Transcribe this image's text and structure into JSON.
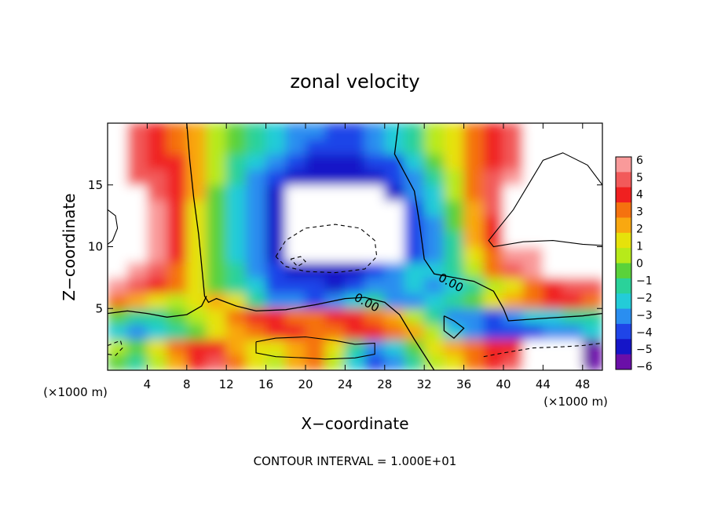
{
  "chart_data": {
    "type": "heatmap",
    "title": "zonal velocity",
    "xlabel": "X−coordinate",
    "ylabel": "Z−coordinate",
    "x_unit_left": "(×1000 m)",
    "x_unit_right": "(×1000 m)",
    "footer": "CONTOUR INTERVAL = 1.000E+01",
    "xlim": [
      0,
      50
    ],
    "ylim": [
      0,
      20
    ],
    "xticks": [
      4,
      8,
      12,
      16,
      20,
      24,
      28,
      32,
      36,
      40,
      44,
      48
    ],
    "yticks": [
      5,
      10,
      15
    ],
    "colorbar": {
      "min": -6,
      "max": 6,
      "labels": [
        "6",
        "5",
        "4",
        "3",
        "2",
        "1",
        "0",
        "−1",
        "−2",
        "−3",
        "−4",
        "−5",
        "−6"
      ],
      "colors": [
        "#f99a9a",
        "#f25a5a",
        "#f02020",
        "#f5720f",
        "#f9a810",
        "#e6e20b",
        "#b7ea1a",
        "#5ad23a",
        "#2ad29a",
        "#23ccd8",
        "#2a8ef0",
        "#1f45e8",
        "#1515c8",
        "#6a0fa8"
      ]
    },
    "contour_labels": [
      {
        "text": "0.00",
        "x": 26.0,
        "y": 5.2
      },
      {
        "text": "0.00",
        "x": 34.5,
        "y": 6.8
      }
    ],
    "grid": [
      [
        -1,
        -2,
        0,
        2,
        4,
        5,
        3,
        1,
        0,
        2,
        3,
        0,
        -3,
        -5,
        -4,
        -2,
        0,
        1,
        3,
        4,
        5,
        -8,
        -9,
        -8,
        -7
      ],
      [
        0,
        -1,
        1,
        3,
        4,
        4,
        2,
        1,
        1,
        2,
        3,
        1,
        -2,
        -4,
        -3,
        -1,
        1,
        2,
        3,
        4,
        4,
        -8,
        -8,
        -8,
        -7
      ],
      [
        -3,
        -4,
        -3,
        -2,
        -1,
        1,
        2,
        3,
        4,
        4,
        3,
        3,
        4,
        4,
        3,
        2,
        0,
        -3,
        -4,
        -5,
        -5,
        -5,
        -4,
        -4,
        -3
      ],
      [
        -1,
        -2,
        -2,
        -1,
        0,
        1,
        3,
        4,
        4,
        3,
        3,
        4,
        4,
        3,
        2,
        0,
        -2,
        -4,
        -4,
        -5,
        -4,
        -3,
        -3,
        -2,
        -2
      ],
      [
        3,
        2,
        1,
        0,
        1,
        2,
        1,
        -2,
        -4,
        -4,
        -5,
        -4,
        -3,
        -2,
        -4,
        -4,
        -3,
        -2,
        -1,
        1,
        2,
        3,
        4,
        4,
        3
      ],
      [
        6,
        5,
        4,
        3,
        1,
        -1,
        -2,
        -3,
        -5,
        -5,
        -5,
        -6,
        -5,
        -4,
        -4,
        -3,
        -4,
        -3,
        -2,
        0,
        1,
        3,
        4,
        5,
        5
      ],
      [
        -9,
        6,
        5,
        3,
        1,
        -1,
        -2,
        -4,
        -5,
        -6,
        -6,
        -6,
        -6,
        -5,
        -4,
        -3,
        -3,
        -2,
        0,
        3,
        5,
        6,
        -9,
        -9,
        -9
      ],
      [
        -9,
        -9,
        6,
        4,
        1,
        -1,
        -3,
        -4,
        -6,
        -9,
        -9,
        -9,
        -9,
        -9,
        -9,
        -5,
        -4,
        -2,
        1,
        3,
        6,
        6,
        -9,
        -9,
        -9
      ],
      [
        -9,
        -9,
        6,
        4,
        1,
        -1,
        -3,
        -4,
        -6,
        -9,
        -9,
        -9,
        -9,
        -9,
        -9,
        -5,
        -4,
        -2,
        2,
        4,
        -9,
        -9,
        -9,
        -9,
        -9
      ],
      [
        -9,
        -9,
        6,
        4,
        1,
        -1,
        -3,
        -4,
        -6,
        -9,
        -9,
        -9,
        -9,
        -9,
        -9,
        -5,
        -4,
        -1,
        2,
        4,
        -9,
        -9,
        -9,
        -9,
        -9
      ],
      [
        -9,
        -9,
        6,
        4,
        1,
        -1,
        -3,
        -4,
        -6,
        -9,
        -9,
        -9,
        -9,
        -9,
        -9,
        -5,
        -3,
        -1,
        2,
        5,
        -9,
        -9,
        -9,
        -9,
        -9
      ],
      [
        -9,
        -9,
        5,
        4,
        2,
        -1,
        -3,
        -4,
        -6,
        -9,
        -9,
        -9,
        -8,
        -9,
        -6,
        -4,
        -3,
        0,
        3,
        5,
        -9,
        -9,
        -9,
        -9,
        -9
      ],
      [
        -9,
        5,
        5,
        4,
        2,
        0,
        -2,
        -4,
        -5,
        -6,
        -6,
        -6,
        -6,
        -6,
        -5,
        -4,
        -2,
        0,
        3,
        5,
        6,
        -9,
        -9,
        -9,
        -9
      ],
      [
        -9,
        5,
        4,
        4,
        2,
        0,
        -2,
        -3,
        -4,
        -5,
        -6,
        -6,
        -6,
        -5,
        -5,
        -3,
        -1,
        1,
        3,
        4,
        5,
        -9,
        -9,
        -9,
        -9
      ],
      [
        -9,
        5,
        4,
        3,
        2,
        0,
        -1,
        -2,
        -3,
        -4,
        -5,
        -5,
        -5,
        -4,
        -3,
        -2,
        0,
        1,
        3,
        4,
        5,
        -9,
        -9,
        -9,
        -9
      ],
      [
        -9,
        5,
        4,
        3,
        2,
        0,
        -1,
        -2,
        -3,
        -4,
        -4,
        -5,
        -5,
        -4,
        -3,
        -2,
        0,
        1,
        3,
        4,
        5,
        -9,
        -9,
        -9,
        -9
      ]
    ]
  }
}
